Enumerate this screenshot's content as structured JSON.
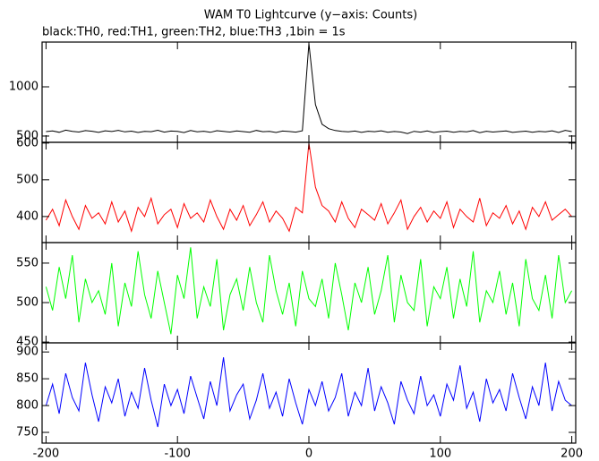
{
  "chart_data": [
    {
      "type": "line",
      "title": "WAM T0 Lightcurve (y−axis: Counts)",
      "subtitle": "black:TH0, red:TH1, green:TH2, blue:TH3 ,1bin = 1s",
      "x": [
        -200,
        -195,
        -190,
        -185,
        -180,
        -175,
        -170,
        -165,
        -160,
        -155,
        -150,
        -145,
        -140,
        -135,
        -130,
        -125,
        -120,
        -115,
        -110,
        -105,
        -100,
        -95,
        -90,
        -85,
        -80,
        -75,
        -70,
        -65,
        -60,
        -55,
        -50,
        -45,
        -40,
        -35,
        -30,
        -25,
        -20,
        -15,
        -10,
        -5,
        0,
        5,
        10,
        15,
        20,
        25,
        30,
        35,
        40,
        45,
        50,
        55,
        60,
        65,
        70,
        75,
        80,
        85,
        90,
        95,
        100,
        105,
        110,
        115,
        120,
        125,
        130,
        135,
        140,
        145,
        150,
        155,
        160,
        165,
        170,
        175,
        180,
        185,
        190,
        195,
        200
      ],
      "series": [
        {
          "name": "TH0",
          "color": "#000000",
          "values": [
            545,
            552,
            538,
            560,
            548,
            541,
            555,
            549,
            537,
            553,
            546,
            558,
            542,
            550,
            536,
            547,
            544,
            559,
            540,
            551,
            548,
            535,
            556,
            543,
            549,
            538,
            554,
            547,
            541,
            552,
            545,
            539,
            557,
            544,
            548,
            536,
            551,
            546,
            540,
            553,
            1440,
            820,
            620,
            575,
            556,
            548,
            542,
            551,
            537,
            549,
            544,
            553,
            539,
            546,
            541,
            525,
            548,
            540,
            552,
            536,
            545,
            550,
            538,
            547,
            543,
            555,
            534,
            549,
            541,
            546,
            552,
            537,
            544,
            550,
            539,
            548,
            542,
            553,
            536,
            558,
            545
          ]
        }
      ],
      "xlim": [
        -203,
        203
      ],
      "xticks": [
        -200,
        -100,
        0,
        100,
        200
      ],
      "ylim": [
        436,
        1455
      ],
      "yticks": [
        500,
        1000
      ]
    },
    {
      "type": "line",
      "x": [
        -200,
        -195,
        -190,
        -185,
        -180,
        -175,
        -170,
        -165,
        -160,
        -155,
        -150,
        -145,
        -140,
        -135,
        -130,
        -125,
        -120,
        -115,
        -110,
        -105,
        -100,
        -95,
        -90,
        -85,
        -80,
        -75,
        -70,
        -65,
        -60,
        -55,
        -50,
        -45,
        -40,
        -35,
        -30,
        -25,
        -20,
        -15,
        -10,
        -5,
        0,
        5,
        10,
        15,
        20,
        25,
        30,
        35,
        40,
        45,
        50,
        55,
        60,
        65,
        70,
        75,
        80,
        85,
        90,
        95,
        100,
        105,
        110,
        115,
        120,
        125,
        130,
        135,
        140,
        145,
        150,
        155,
        160,
        165,
        170,
        175,
        180,
        185,
        190,
        195,
        200
      ],
      "series": [
        {
          "name": "TH1",
          "color": "#ff0000",
          "values": [
            390,
            420,
            375,
            445,
            400,
            365,
            430,
            395,
            410,
            380,
            440,
            385,
            415,
            360,
            425,
            400,
            450,
            380,
            405,
            420,
            370,
            435,
            395,
            410,
            385,
            445,
            400,
            365,
            420,
            390,
            430,
            375,
            405,
            440,
            385,
            415,
            395,
            360,
            425,
            410,
            600,
            480,
            430,
            415,
            385,
            440,
            395,
            370,
            420,
            405,
            390,
            435,
            380,
            410,
            445,
            365,
            400,
            425,
            385,
            415,
            395,
            440,
            370,
            420,
            400,
            385,
            450,
            375,
            410,
            395,
            430,
            380,
            415,
            365,
            425,
            400,
            440,
            390,
            405,
            420,
            400
          ]
        }
      ],
      "xlim": [
        -203,
        203
      ],
      "xticks": [
        -200,
        -100,
        0,
        100,
        200
      ],
      "ylim": [
        329,
        602
      ],
      "yticks": [
        400,
        500,
        600
      ]
    },
    {
      "type": "line",
      "x": [
        -200,
        -195,
        -190,
        -185,
        -180,
        -175,
        -170,
        -165,
        -160,
        -155,
        -150,
        -145,
        -140,
        -135,
        -130,
        -125,
        -120,
        -115,
        -110,
        -105,
        -100,
        -95,
        -90,
        -85,
        -80,
        -75,
        -70,
        -65,
        -60,
        -55,
        -50,
        -45,
        -40,
        -35,
        -30,
        -25,
        -20,
        -15,
        -10,
        -5,
        0,
        5,
        10,
        15,
        20,
        25,
        30,
        35,
        40,
        45,
        50,
        55,
        60,
        65,
        70,
        75,
        80,
        85,
        90,
        95,
        100,
        105,
        110,
        115,
        120,
        125,
        130,
        135,
        140,
        145,
        150,
        155,
        160,
        165,
        170,
        175,
        180,
        185,
        190,
        195,
        200
      ],
      "series": [
        {
          "name": "TH2",
          "color": "#00ff00",
          "values": [
            520,
            490,
            545,
            505,
            560,
            475,
            530,
            500,
            515,
            485,
            550,
            470,
            525,
            495,
            565,
            510,
            480,
            540,
            500,
            460,
            535,
            505,
            570,
            480,
            520,
            495,
            555,
            465,
            510,
            530,
            490,
            545,
            500,
            475,
            560,
            515,
            485,
            525,
            470,
            540,
            505,
            495,
            530,
            480,
            550,
            510,
            465,
            525,
            500,
            545,
            485,
            515,
            560,
            475,
            535,
            500,
            490,
            555,
            470,
            520,
            505,
            545,
            480,
            530,
            495,
            565,
            475,
            515,
            500,
            540,
            485,
            525,
            470,
            555,
            505,
            490,
            535,
            480,
            560,
            500,
            515
          ]
        }
      ],
      "xlim": [
        -203,
        203
      ],
      "xticks": [
        -200,
        -100,
        0,
        100,
        200
      ],
      "ylim": [
        449,
        576
      ],
      "yticks": [
        450,
        500,
        550
      ]
    },
    {
      "type": "line",
      "x": [
        -200,
        -195,
        -190,
        -185,
        -180,
        -175,
        -170,
        -165,
        -160,
        -155,
        -150,
        -145,
        -140,
        -135,
        -130,
        -125,
        -120,
        -115,
        -110,
        -105,
        -100,
        -95,
        -90,
        -85,
        -80,
        -75,
        -70,
        -65,
        -60,
        -55,
        -50,
        -45,
        -40,
        -35,
        -30,
        -25,
        -20,
        -15,
        -10,
        -5,
        0,
        5,
        10,
        15,
        20,
        25,
        30,
        35,
        40,
        45,
        50,
        55,
        60,
        65,
        70,
        75,
        80,
        85,
        90,
        95,
        100,
        105,
        110,
        115,
        120,
        125,
        130,
        135,
        140,
        145,
        150,
        155,
        160,
        165,
        170,
        175,
        180,
        185,
        190,
        195,
        200
      ],
      "series": [
        {
          "name": "TH3",
          "color": "#0000ff",
          "values": [
            800,
            840,
            785,
            860,
            815,
            790,
            880,
            820,
            770,
            835,
            805,
            850,
            780,
            825,
            795,
            870,
            810,
            760,
            840,
            800,
            830,
            785,
            855,
            815,
            775,
            845,
            800,
            890,
            790,
            820,
            840,
            775,
            810,
            860,
            795,
            825,
            780,
            850,
            805,
            765,
            830,
            800,
            845,
            790,
            815,
            860,
            780,
            825,
            800,
            870,
            790,
            835,
            805,
            765,
            845,
            810,
            785,
            855,
            800,
            820,
            780,
            840,
            810,
            875,
            795,
            825,
            770,
            850,
            805,
            830,
            790,
            860,
            815,
            775,
            835,
            800,
            880,
            790,
            845,
            810,
            800
          ]
        }
      ],
      "xlim": [
        -203,
        203
      ],
      "xticks": [
        -200,
        -100,
        0,
        100,
        200
      ],
      "ylim": [
        730,
        917
      ],
      "yticks": [
        750,
        800,
        850,
        900
      ]
    }
  ]
}
